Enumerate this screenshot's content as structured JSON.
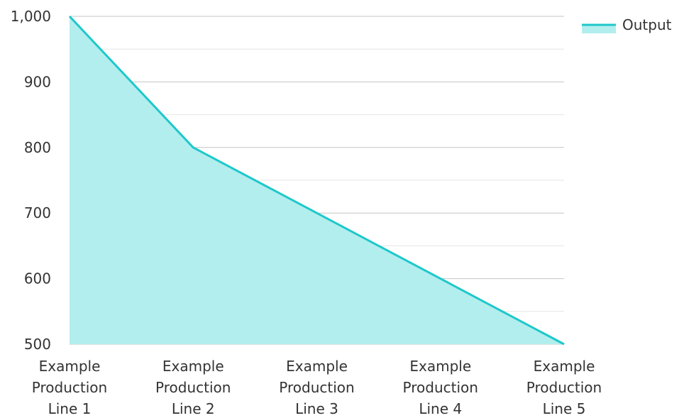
{
  "chart_data": {
    "type": "area",
    "title": "",
    "xlabel": "",
    "ylabel": "",
    "categories": [
      [
        "Example",
        "Production",
        "Line 1"
      ],
      [
        "Example",
        "Production",
        "Line 2"
      ],
      [
        "Example",
        "Production",
        "Line 3"
      ],
      [
        "Example",
        "Production",
        "Line 4"
      ],
      [
        "Example",
        "Production",
        "Line 5"
      ]
    ],
    "series": [
      {
        "name": "Output",
        "values": [
          1000,
          800,
          700,
          600,
          500
        ]
      }
    ],
    "ylim": [
      500,
      1000
    ],
    "yticks": [
      500,
      600,
      700,
      800,
      900,
      1000
    ],
    "ytick_labels": [
      "500",
      "600",
      "700",
      "800",
      "900",
      "1,000"
    ],
    "minor_grid_step": 50,
    "grid": true,
    "legend_position": "top-right",
    "colors": {
      "line": "#1ec8cb",
      "fill": "#b3eeee",
      "grid_major": "#c4c4c4",
      "grid_minor": "#e4e4e4",
      "text": "#333333"
    }
  }
}
